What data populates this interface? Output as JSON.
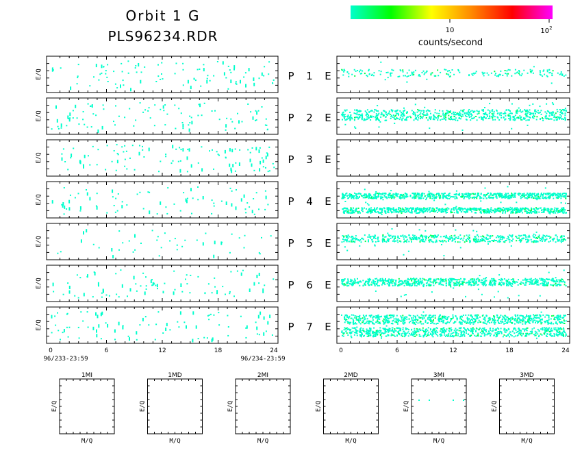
{
  "header": {
    "title_line1": "Orbit 1 G",
    "title_line2": "PLS96234.RDR"
  },
  "colorbar": {
    "label": "counts/second",
    "tick_10": "10",
    "tick_100": "10",
    "tick_100_exp": "2",
    "colors": [
      "#00ffcc",
      "#00ff00",
      "#ffff00",
      "#ff8800",
      "#ff0000",
      "#ff00ff"
    ]
  },
  "labels": {
    "ylabel": "E/Q",
    "detector_side": "E",
    "mass_xlabel": "M/Q",
    "start_time": "96/233-23:59",
    "end_time": "96/234-23:59"
  },
  "chart_data": [
    {
      "type": "heatmap",
      "name": "spectrogram-grid",
      "x_ticks": [
        "0",
        "6",
        "12",
        "18",
        "24"
      ],
      "xlim": [
        0,
        24
      ],
      "ylabel": "E/Q",
      "panels": [
        {
          "row": "P",
          "num": "1",
          "left_density": 0.55,
          "right_density": 0.25,
          "right_bands": [
            [
              0.35,
              0.55
            ]
          ]
        },
        {
          "row": "P",
          "num": "2",
          "left_density": 0.55,
          "right_density": 0.9,
          "right_bands": [
            [
              0.3,
              0.6
            ]
          ]
        },
        {
          "row": "P",
          "num": "3",
          "left_density": 0.6,
          "right_density": 0.0,
          "right_bands": []
        },
        {
          "row": "P",
          "num": "4",
          "left_density": 0.45,
          "right_density": 1.0,
          "right_bands": [
            [
              0.3,
              0.45
            ],
            [
              0.7,
              0.85
            ]
          ]
        },
        {
          "row": "P",
          "num": "5",
          "left_density": 0.25,
          "right_density": 0.7,
          "right_bands": [
            [
              0.3,
              0.5
            ]
          ]
        },
        {
          "row": "P",
          "num": "6",
          "left_density": 0.5,
          "right_density": 1.0,
          "right_bands": [
            [
              0.35,
              0.55
            ]
          ]
        },
        {
          "row": "P",
          "num": "7",
          "left_density": 0.5,
          "right_density": 1.0,
          "right_bands": [
            [
              0.2,
              0.45
            ],
            [
              0.55,
              0.8
            ]
          ]
        }
      ]
    },
    {
      "type": "heatmap",
      "name": "mass-spectra",
      "xlabel": "M/Q",
      "ylabel": "E/Q",
      "panels": [
        {
          "title": "1MI",
          "points": 0
        },
        {
          "title": "1MD",
          "points": 0
        },
        {
          "title": "2MI",
          "points": 0
        },
        {
          "title": "2MD",
          "points": 0
        },
        {
          "title": "3MI",
          "points": 4
        },
        {
          "title": "3MD",
          "points": 0
        }
      ]
    }
  ]
}
